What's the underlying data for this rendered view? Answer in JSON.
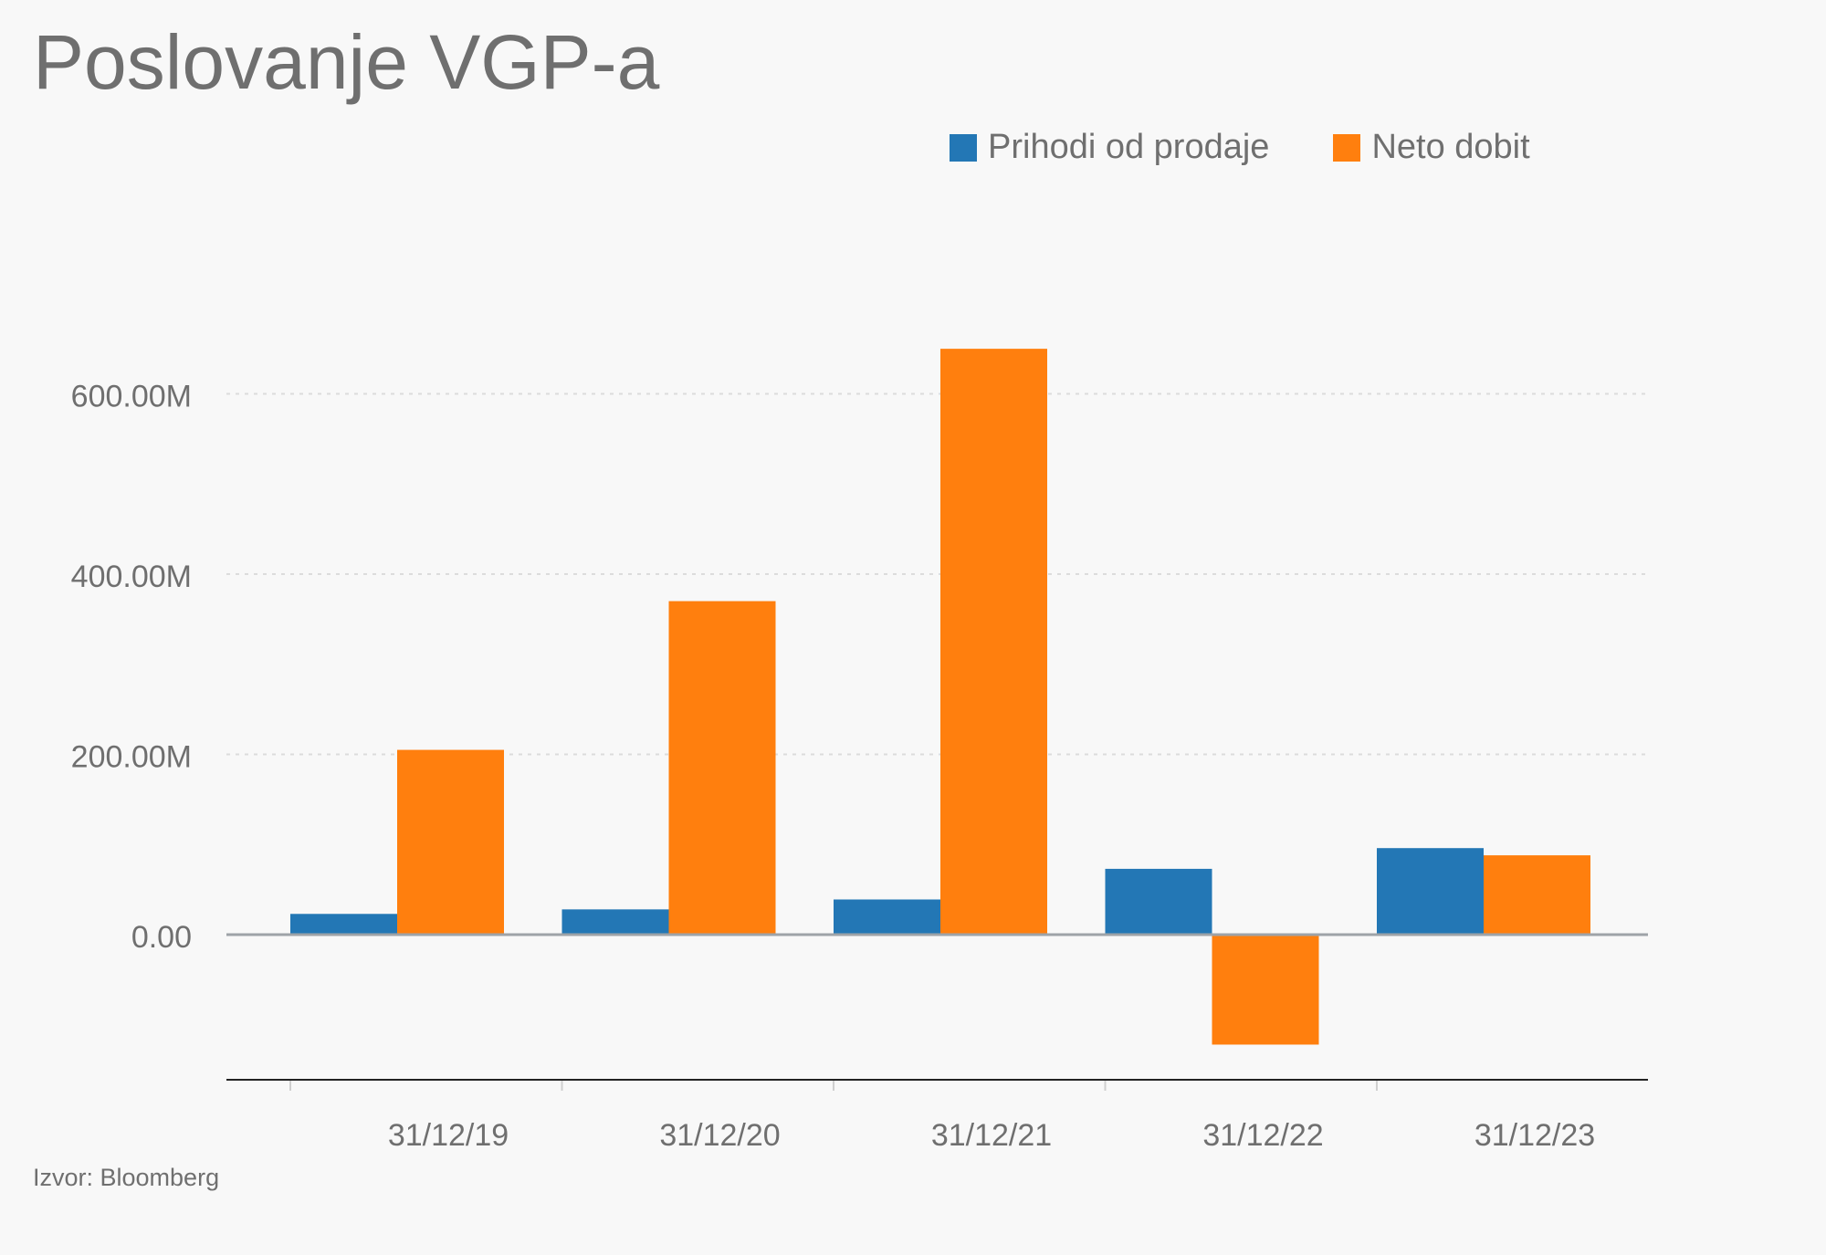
{
  "chart_data": {
    "type": "bar",
    "title": "Poslovanje VGP-a",
    "categories": [
      "31/12/19",
      "31/12/20",
      "31/12/21",
      "31/12/22",
      "31/12/23"
    ],
    "series": [
      {
        "name": "Prihodi od prodaje",
        "color": "#2377b5",
        "values": [
          23,
          28,
          39,
          73,
          96
        ]
      },
      {
        "name": "Neto dobit",
        "color": "#ff7f0e",
        "values": [
          205,
          370,
          650,
          -122,
          88
        ]
      }
    ],
    "ylim": [
      -130,
      650
    ],
    "yticks": [
      {
        "value": 0,
        "label": "0.00"
      },
      {
        "value": 200,
        "label": "200.00M"
      },
      {
        "value": 400,
        "label": "400.00M"
      },
      {
        "value": 600,
        "label": "600.00M"
      }
    ],
    "grid": true,
    "legend_position": "top-right",
    "source": "Izvor: Bloomberg"
  }
}
